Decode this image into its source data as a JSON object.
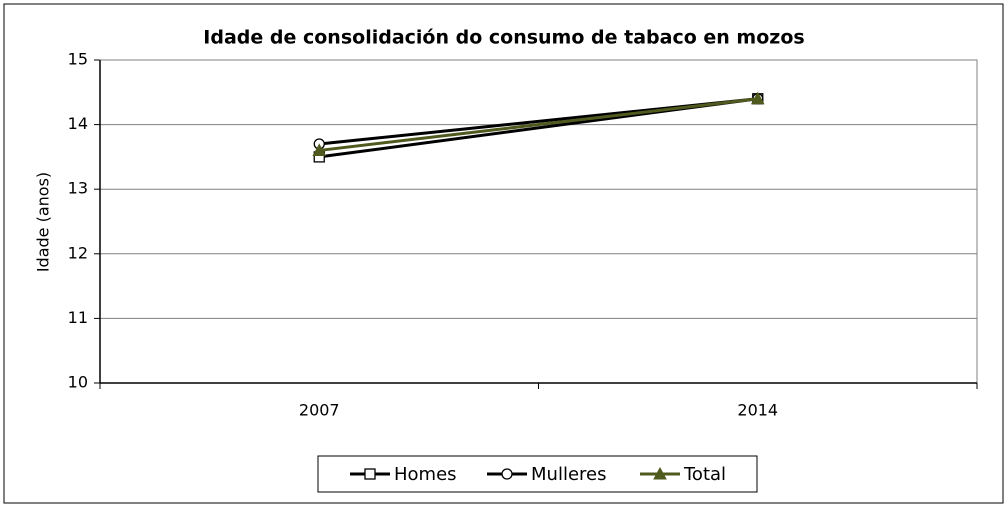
{
  "chart_data": {
    "type": "line",
    "title": "Idade de consolidación do consumo de tabaco en mozos",
    "y_label": "Idade (anos)",
    "categories": [
      "2007",
      "2014"
    ],
    "series": [
      {
        "name": "Homes",
        "color": "#000000",
        "marker": "square",
        "values": [
          13.5,
          14.4
        ]
      },
      {
        "name": "Mulleres",
        "color": "#000000",
        "marker": "circle",
        "values": [
          13.7,
          14.4
        ]
      },
      {
        "name": "Total",
        "color": "#4f5a1e",
        "marker": "triangle",
        "values": [
          13.6,
          14.4
        ]
      }
    ],
    "ylim": [
      10,
      15
    ],
    "yticks": [
      10,
      11,
      12,
      13,
      14,
      15
    ],
    "grid": true,
    "legend": "bottom"
  }
}
